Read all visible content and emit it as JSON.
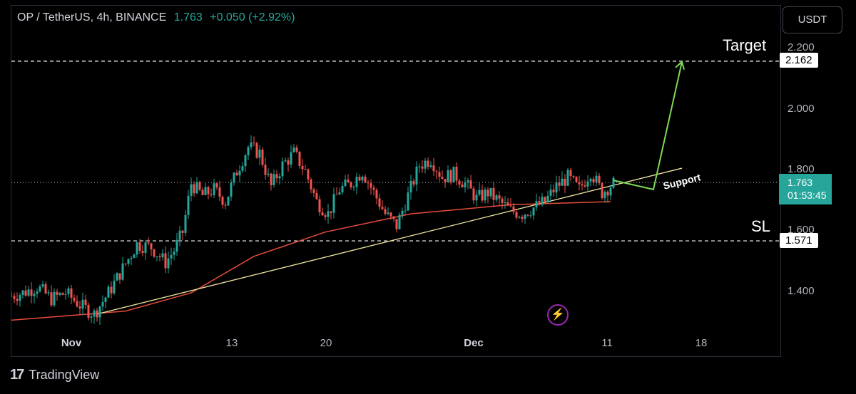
{
  "header": {
    "symbol": "OP / TetherUS, 4h, BINANCE",
    "last_price": "1.763",
    "change": "+0.050 (+2.92%)"
  },
  "currency_button": "USDT",
  "annotations": {
    "target_label": "Target",
    "sl_label": "SL",
    "support_label": "Support",
    "target_price": "2.162",
    "sl_price": "1.571",
    "current_price": "1.763",
    "countdown": "01:53:45"
  },
  "branding": "TradingView",
  "icons": {
    "alert": "lightning-icon",
    "logo": "tradingview-logo-icon"
  },
  "colors": {
    "up": "#26a69a",
    "down": "#ef5350",
    "ma": "#e74c3c",
    "support": "#f0e6a0",
    "projection": "#7ed957"
  },
  "chart_data": {
    "type": "candlestick",
    "title": "OP / TetherUS, 4h, BINANCE",
    "y_ticks": [
      "1.400",
      "1.600",
      "1.800",
      "2.000",
      "2.200"
    ],
    "x_ticks": [
      "Nov",
      "13",
      "20",
      "Dec",
      "11",
      "18"
    ],
    "ylim": [
      1.3,
      2.32
    ],
    "price_path": [
      [
        0,
        1.39
      ],
      [
        4,
        1.4
      ],
      [
        9,
        1.42
      ],
      [
        14,
        1.38
      ],
      [
        19,
        1.4
      ],
      [
        24,
        1.36
      ],
      [
        29,
        1.33
      ],
      [
        34,
        1.4
      ],
      [
        39,
        1.48
      ],
      [
        44,
        1.56
      ],
      [
        49,
        1.55
      ],
      [
        54,
        1.5
      ],
      [
        57,
        1.54
      ],
      [
        60,
        1.6
      ],
      [
        63,
        1.76
      ],
      [
        67,
        1.72
      ],
      [
        71,
        1.74
      ],
      [
        75,
        1.7
      ],
      [
        79,
        1.8
      ],
      [
        83,
        1.88
      ],
      [
        87,
        1.86
      ],
      [
        91,
        1.75
      ],
      [
        95,
        1.82
      ],
      [
        99,
        1.86
      ],
      [
        103,
        1.8
      ],
      [
        107,
        1.7
      ],
      [
        111,
        1.66
      ],
      [
        115,
        1.74
      ],
      [
        119,
        1.76
      ],
      [
        123,
        1.8
      ],
      [
        127,
        1.73
      ],
      [
        131,
        1.66
      ],
      [
        135,
        1.62
      ],
      [
        139,
        1.72
      ],
      [
        143,
        1.82
      ],
      [
        147,
        1.84
      ],
      [
        151,
        1.78
      ],
      [
        155,
        1.79
      ],
      [
        159,
        1.76
      ],
      [
        163,
        1.71
      ],
      [
        167,
        1.73
      ],
      [
        171,
        1.7
      ],
      [
        175,
        1.67
      ],
      [
        179,
        1.66
      ],
      [
        183,
        1.68
      ],
      [
        187,
        1.7
      ],
      [
        191,
        1.75
      ],
      [
        195,
        1.78
      ],
      [
        199,
        1.74
      ],
      [
        203,
        1.8
      ],
      [
        207,
        1.73
      ],
      [
        211,
        1.76
      ]
    ],
    "ma_line": [
      [
        0,
        1.31
      ],
      [
        40,
        1.34
      ],
      [
        63,
        1.4
      ],
      [
        85,
        1.52
      ],
      [
        110,
        1.6
      ],
      [
        140,
        1.66
      ],
      [
        175,
        1.69
      ],
      [
        210,
        1.7
      ]
    ],
    "support_line": {
      "from": [
        30,
        1.33
      ],
      "to": [
        235,
        1.81
      ]
    },
    "projection": [
      [
        211,
        1.77
      ],
      [
        225,
        1.74
      ],
      [
        235,
        2.16
      ]
    ],
    "target_level": 2.162,
    "sl_level": 1.571,
    "current_level": 1.763
  }
}
